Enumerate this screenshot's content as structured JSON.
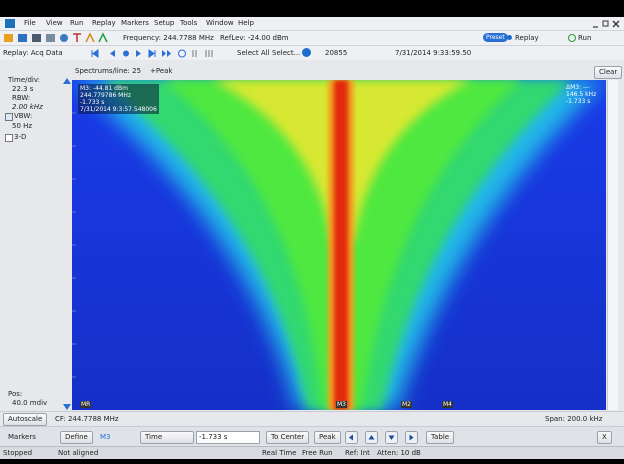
{
  "menu": {
    "items": [
      "File",
      "View",
      "Run",
      "Replay",
      "Markers",
      "Setup",
      "Tools",
      "Window",
      "Help"
    ]
  },
  "toolbar": {
    "frequency": "Frequency: 244.7788 MHz",
    "ref_level": "RefLev: -24.00 dBm",
    "preset": "Preset",
    "replay": "Replay",
    "run": "Run"
  },
  "replay_bar": {
    "label": "Replay: Acq Data",
    "select_all": "Select All",
    "select": "Select...",
    "acq_count": "20855",
    "timestamp": "7/31/2014 9:33:59.50"
  },
  "left_panel": {
    "time_div_label": "Time/div:",
    "time_div": "22.3 s",
    "rbw_label": "RBW:",
    "rbw": "2.00 kHz",
    "vbw_label": "VBW:",
    "vbw": "50 Hz",
    "three_d": "3-D",
    "pos_label": "Pos:",
    "pos": "40.0 mdiv"
  },
  "display": {
    "spectrums_per_line": "Spectrums/line: 25",
    "detection": "+Peak",
    "clear": "Clear",
    "marker_readout": [
      "M3: -44.81 dBm",
      "244.779786 MHz",
      "-1.733 s",
      "7/31/2014 9:3:57.548006"
    ],
    "delta_readout": [
      "ΔM3: ---",
      "146.5 kHz",
      "-1.733 s"
    ],
    "markers": [
      "MR",
      "M3",
      "M2",
      "M4"
    ]
  },
  "bottom_bar": {
    "autoscale": "Autoscale",
    "center_freq": "CF: 244.7788 MHz",
    "span": "Span: 200.0 kHz"
  },
  "markers_bar": {
    "label": "Markers",
    "define": "Define",
    "marker": "M3",
    "mode": "Time",
    "value": "-1.733 s",
    "to_center": "To Center",
    "peak": "Peak",
    "table": "Table",
    "close": "X"
  },
  "status_bar": {
    "state": "Stopped",
    "alignment": "Not aligned",
    "mode": "Real Time",
    "trigger": "Free Run",
    "ref": "Ref: Int",
    "atten": "Atten: 10 dB"
  }
}
